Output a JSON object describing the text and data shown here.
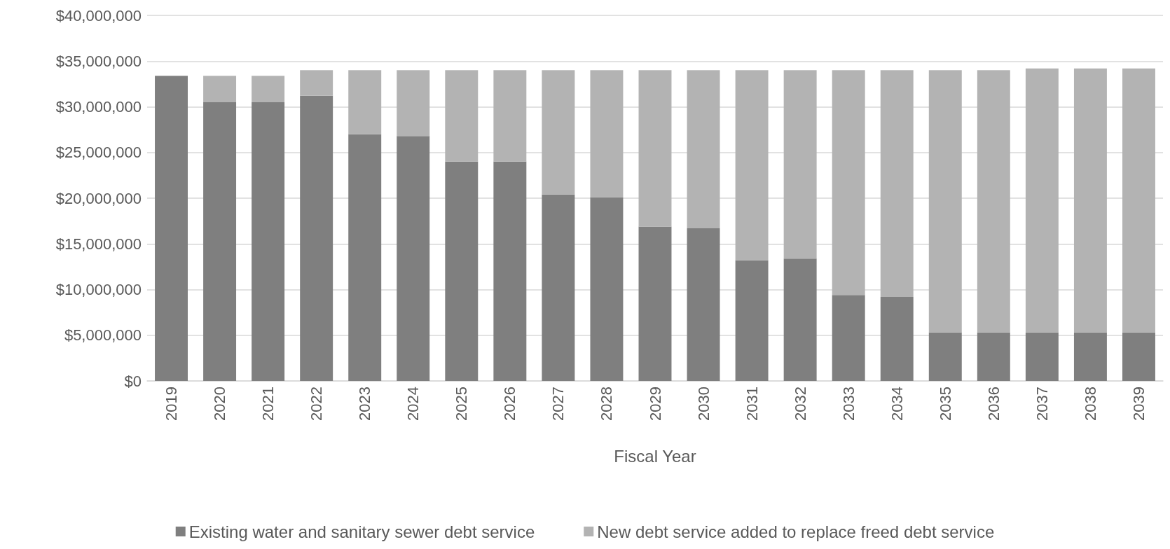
{
  "chart_data": {
    "type": "bar",
    "stacked": true,
    "xlabel": "Fiscal Year",
    "categories": [
      "2019",
      "2020",
      "2021",
      "2022",
      "2023",
      "2024",
      "2025",
      "2026",
      "2027",
      "2028",
      "2029",
      "2030",
      "2031",
      "2032",
      "2033",
      "2034",
      "2035",
      "2036",
      "2037",
      "2038",
      "2039"
    ],
    "series": [
      {
        "name": "Existing water and sanitary sewer debt service",
        "color": "#7f7f7f",
        "values": [
          33400000,
          30500000,
          30500000,
          31200000,
          27000000,
          26800000,
          24000000,
          24000000,
          20400000,
          20100000,
          16900000,
          16700000,
          13200000,
          13400000,
          9400000,
          9200000,
          5300000,
          5300000,
          5300000,
          5300000,
          5300000
        ]
      },
      {
        "name": "New debt service added to replace freed debt service",
        "color": "#b3b3b3",
        "values": [
          0,
          2900000,
          2900000,
          2800000,
          7000000,
          7200000,
          10000000,
          10000000,
          13600000,
          13900000,
          17100000,
          17300000,
          20800000,
          20600000,
          24600000,
          24800000,
          28700000,
          28700000,
          28900000,
          28900000,
          28900000
        ]
      }
    ],
    "ylim": [
      0,
      40000000
    ],
    "yticks": [
      {
        "value": 0,
        "label": "$0"
      },
      {
        "value": 5000000,
        "label": "$5,000,000"
      },
      {
        "value": 10000000,
        "label": "$10,000,000"
      },
      {
        "value": 15000000,
        "label": "$15,000,000"
      },
      {
        "value": 20000000,
        "label": "$20,000,000"
      },
      {
        "value": 25000000,
        "label": "$25,000,000"
      },
      {
        "value": 30000000,
        "label": "$30,000,000"
      },
      {
        "value": 35000000,
        "label": "$35,000,000"
      },
      {
        "value": 40000000,
        "label": "$40,000,000"
      }
    ],
    "grid": "y",
    "legend": "bottom"
  }
}
